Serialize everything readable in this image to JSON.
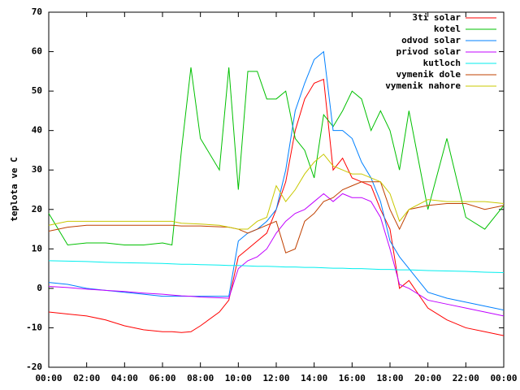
{
  "chart_data": {
    "type": "line",
    "ylabel": "teplota ve C",
    "x": [
      0,
      1,
      2,
      3,
      4,
      5,
      6,
      6.5,
      7,
      7.5,
      8,
      9,
      9.5,
      10,
      10.5,
      11,
      11.5,
      12,
      12.5,
      13,
      13.5,
      14,
      14.5,
      15,
      15.5,
      16,
      16.5,
      17,
      17.5,
      18,
      18.5,
      19,
      20,
      21,
      22,
      23,
      24
    ],
    "xlim": [
      0,
      24
    ],
    "xticks": [
      {
        "value": 0,
        "label": "00:00"
      },
      {
        "value": 2,
        "label": "02:00"
      },
      {
        "value": 4,
        "label": "04:00"
      },
      {
        "value": 6,
        "label": "06:00"
      },
      {
        "value": 8,
        "label": "08:00"
      },
      {
        "value": 10,
        "label": "10:00"
      },
      {
        "value": 12,
        "label": "12:00"
      },
      {
        "value": 14,
        "label": "14:00"
      },
      {
        "value": 16,
        "label": "16:00"
      },
      {
        "value": 18,
        "label": "18:00"
      },
      {
        "value": 20,
        "label": "20:00"
      },
      {
        "value": 22,
        "label": "22:00"
      },
      {
        "value": 24,
        "label": "00:00"
      }
    ],
    "ylim": [
      -20,
      70
    ],
    "yticks": [
      -20,
      -10,
      0,
      10,
      20,
      30,
      40,
      50,
      60,
      70
    ],
    "grid": false,
    "legend": "top-right",
    "series": [
      {
        "name": "3ti solar",
        "color": "#ff0000",
        "values": [
          -6,
          -6.5,
          -7,
          -8,
          -9.5,
          -10.5,
          -11,
          -11,
          -11.2,
          -11,
          -9.5,
          -6,
          -3,
          8,
          10,
          12,
          14,
          20,
          27,
          40,
          48,
          52,
          53,
          30,
          33,
          28,
          27,
          26,
          20,
          15,
          0,
          2,
          -5,
          -8,
          -10,
          -11,
          -12
        ]
      },
      {
        "name": "kotel",
        "color": "#00c000",
        "values": [
          19,
          11,
          11.5,
          11.5,
          11,
          11,
          11.5,
          11,
          35,
          56,
          38,
          30,
          56,
          25,
          55,
          55,
          48,
          48,
          50,
          38,
          35,
          28,
          44,
          41,
          45,
          50,
          48,
          40,
          45,
          40,
          30,
          45,
          20,
          38,
          18,
          15,
          21
        ]
      },
      {
        "name": "odvod solar",
        "color": "#0080ff",
        "values": [
          1.5,
          1,
          0,
          -0.5,
          -1,
          -1.5,
          -2,
          -2,
          -2,
          -2,
          -2,
          -2,
          -2,
          12,
          14,
          15,
          17,
          20,
          30,
          45,
          52,
          58,
          60,
          40,
          40,
          38,
          32,
          28,
          22,
          12,
          8,
          5,
          -1,
          -2.5,
          -3.5,
          -4.5,
          -5.5
        ]
      },
      {
        "name": "privod solar",
        "color": "#c000ff",
        "values": [
          0.5,
          0.2,
          -0.2,
          -0.5,
          -0.8,
          -1.2,
          -1.5,
          -1.7,
          -1.9,
          -2,
          -2.2,
          -2.4,
          -2.5,
          5,
          7,
          8,
          10,
          14,
          17,
          19,
          20,
          22,
          24,
          22,
          24,
          23,
          23,
          22,
          18,
          10,
          1,
          0,
          -3,
          -4,
          -5,
          -6,
          -7
        ]
      },
      {
        "name": "kutloch",
        "color": "#00eeee",
        "values": [
          7,
          6.9,
          6.8,
          6.6,
          6.5,
          6.4,
          6.3,
          6.2,
          6.1,
          6.1,
          6,
          5.9,
          5.8,
          5.8,
          5.7,
          5.6,
          5.6,
          5.5,
          5.4,
          5.4,
          5.3,
          5.3,
          5.2,
          5.1,
          5.1,
          5,
          5,
          4.9,
          4.8,
          4.8,
          4.7,
          4.7,
          4.5,
          4.4,
          4.3,
          4.1,
          4
        ]
      },
      {
        "name": "vymenik dole",
        "color": "#c04000",
        "values": [
          14.5,
          15.5,
          16,
          16,
          16,
          16,
          16,
          16,
          15.8,
          15.8,
          15.8,
          15.6,
          15.5,
          15,
          14,
          15,
          16,
          17,
          9,
          10,
          17,
          19,
          22,
          23,
          25,
          26,
          27,
          27,
          27,
          20,
          15,
          20,
          21,
          21.5,
          21.5,
          20,
          21
        ]
      },
      {
        "name": "vymenik nahore",
        "color": "#c8c800",
        "values": [
          16,
          17,
          17,
          17,
          17,
          17,
          17,
          17,
          16.5,
          16.4,
          16.3,
          16,
          15.5,
          15,
          15,
          17,
          18,
          26,
          22,
          25,
          29,
          32,
          34,
          31,
          30,
          29,
          29,
          28,
          27,
          24,
          17,
          20,
          22.5,
          22,
          22,
          22,
          21.5
        ]
      }
    ]
  }
}
